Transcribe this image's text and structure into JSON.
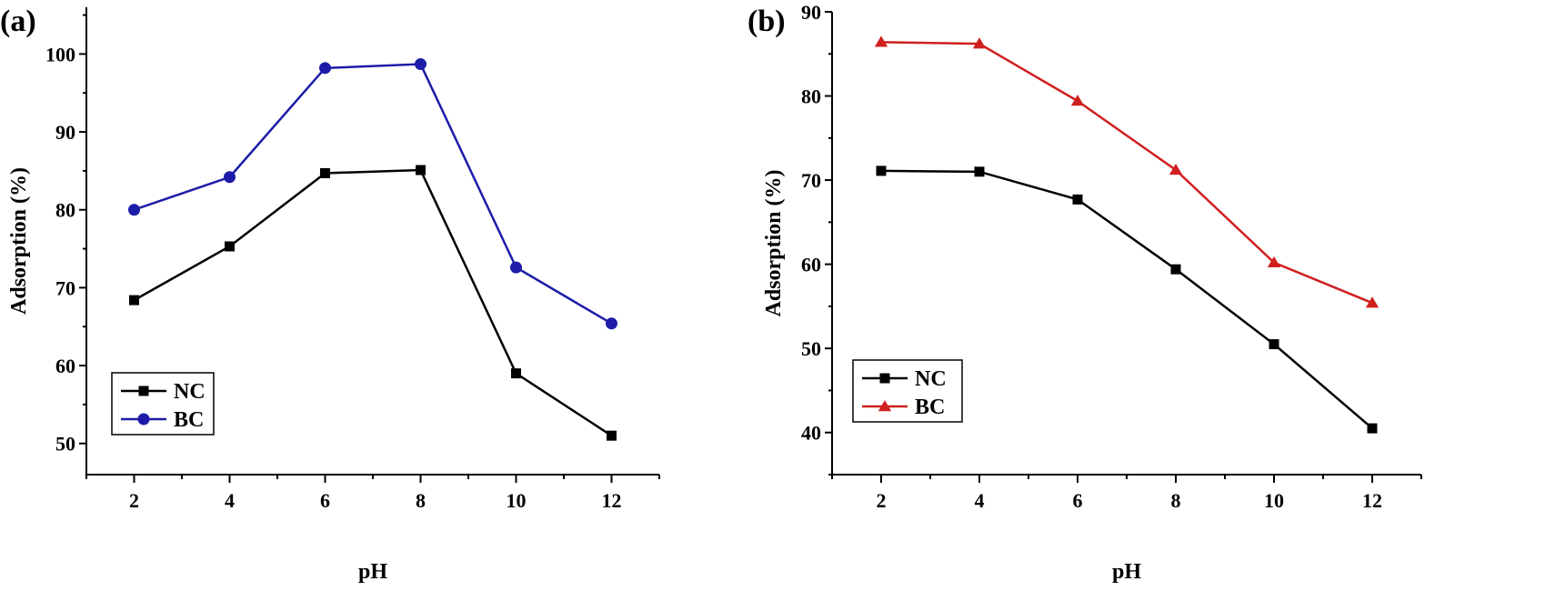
{
  "chart_data": [
    {
      "type": "line",
      "panel_label": "(a)",
      "xlabel": "pH",
      "ylabel": "Adsorption (%)",
      "xlim": [
        1,
        13
      ],
      "ylim": [
        46,
        106
      ],
      "xticks": [
        2,
        4,
        6,
        8,
        10,
        12
      ],
      "yticks": [
        50,
        60,
        70,
        80,
        90,
        100
      ],
      "x": [
        2,
        4,
        6,
        8,
        10,
        12
      ],
      "legend_position": "bottom-left",
      "series": [
        {
          "name": "NC",
          "marker": "square",
          "color": "#000000",
          "values": [
            68.4,
            75.3,
            84.7,
            85.1,
            59.0,
            51.0
          ]
        },
        {
          "name": "BC",
          "marker": "circle",
          "color": "#1c1ca8",
          "values": [
            80.0,
            84.2,
            98.2,
            98.7,
            72.6,
            65.4
          ]
        }
      ]
    },
    {
      "type": "line",
      "panel_label": "(b)",
      "xlabel": "pH",
      "ylabel": "Adsorption (%)",
      "xlim": [
        1,
        13
      ],
      "ylim": [
        35,
        90
      ],
      "xticks": [
        2,
        4,
        6,
        8,
        10,
        12
      ],
      "yticks": [
        40,
        50,
        60,
        70,
        80,
        90
      ],
      "x": [
        2,
        4,
        6,
        8,
        10,
        12
      ],
      "legend_position": "bottom-left",
      "series": [
        {
          "name": "NC",
          "marker": "square",
          "color": "#000000",
          "values": [
            71.1,
            71.0,
            67.7,
            59.4,
            50.5,
            40.5
          ]
        },
        {
          "name": "BC",
          "marker": "triangle",
          "color": "#d01f1f",
          "values": [
            86.4,
            86.2,
            79.4,
            71.2,
            60.2,
            55.4
          ]
        }
      ]
    }
  ]
}
